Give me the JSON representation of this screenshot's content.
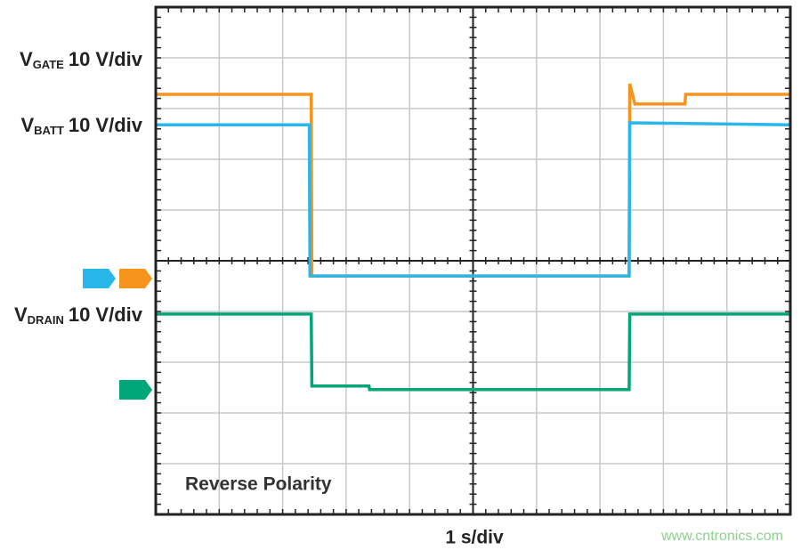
{
  "chart_data": {
    "type": "line",
    "xlabel": "1 s/div",
    "annotation": "Reverse Polarity",
    "watermark": "www.cntronics.com",
    "xlim": [
      0,
      10
    ],
    "ylim": [
      0,
      10
    ],
    "xticks": [
      0,
      1,
      2,
      3,
      4,
      5,
      6,
      7,
      8,
      9,
      10
    ],
    "yticks": [
      0,
      1,
      2,
      3,
      4,
      5,
      6,
      7,
      8,
      9,
      10
    ],
    "grid": true,
    "series": [
      {
        "name": "V",
        "subscript": "GATE",
        "scale": "10 V/div",
        "color": "#f7941d",
        "x": [
          0,
          2.45,
          2.46,
          7.46,
          7.47,
          7.55,
          8.34,
          8.35,
          10
        ],
        "values": [
          8.28,
          8.28,
          4.7,
          4.7,
          8.49,
          8.09,
          8.09,
          8.28,
          8.28
        ]
      },
      {
        "name": "V",
        "subscript": "BATT",
        "scale": "10 V/div",
        "color": "#29b6e8",
        "x": [
          0,
          2.42,
          2.43,
          7.46,
          7.47,
          10
        ],
        "values": [
          7.68,
          7.68,
          4.7,
          4.7,
          7.72,
          7.68
        ]
      },
      {
        "name": "V",
        "subscript": "DRAIN",
        "scale": "10 V/div",
        "color": "#00a678",
        "x": [
          0,
          2.45,
          2.46,
          3.36,
          3.37,
          7.46,
          7.47,
          10
        ],
        "values": [
          3.95,
          3.95,
          2.53,
          2.53,
          2.46,
          2.46,
          3.95,
          3.95
        ]
      }
    ]
  }
}
